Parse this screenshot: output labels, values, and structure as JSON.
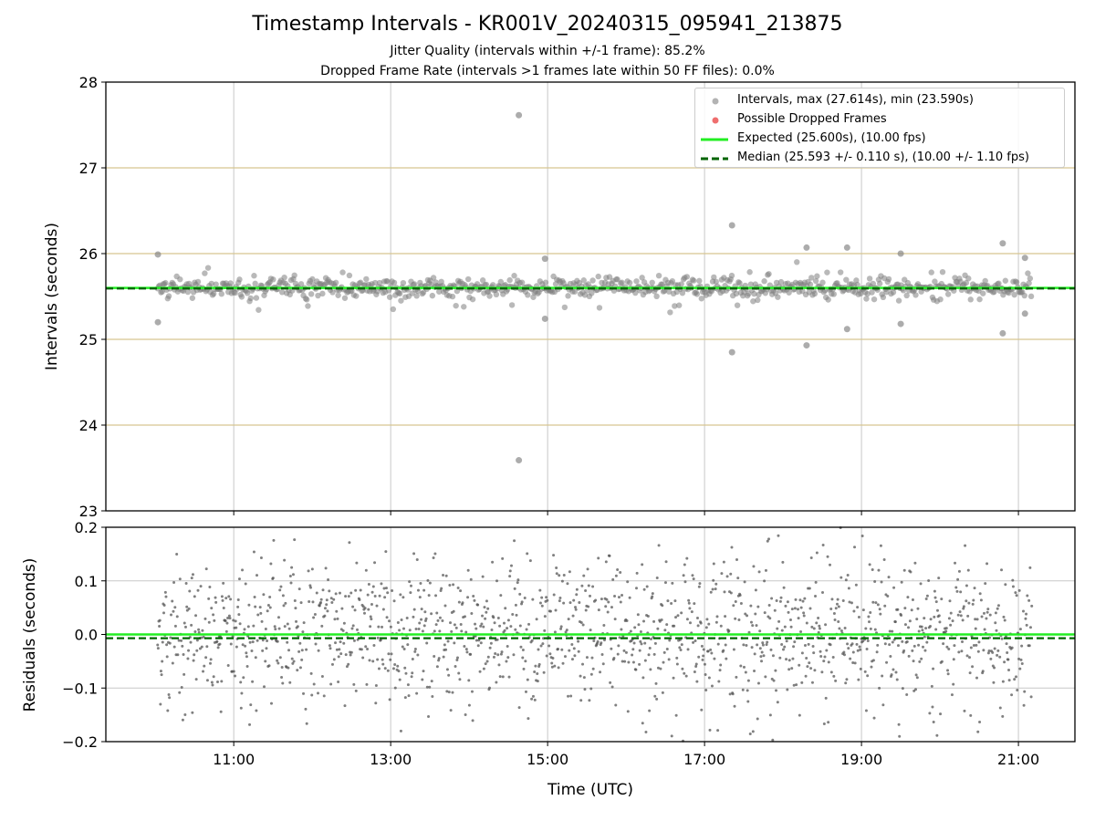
{
  "title": "Timestamp Intervals - KR001V_20240315_095941_213875",
  "subtitle_jitter": "Jitter Quality (intervals within +/-1 frame): 85.2%",
  "subtitle_dropped": "Dropped Frame Rate (intervals >1 frames late within 50 FF files): 0.0%",
  "legend": {
    "intervals": "Intervals, max (27.614s), min (23.590s)",
    "dropped": "Possible Dropped Frames",
    "expected": "Expected (25.600s), (10.00 fps)",
    "median": "Median (25.593 +/- 0.110 s), (10.00 +/- 1.10 fps)"
  },
  "colors": {
    "points": "#808080",
    "dropped": "#e83030",
    "expected": "#22ee22",
    "median": "#006400",
    "hgrid_top": "#d6c590",
    "grid": "#c8c8c8"
  },
  "chart_data": [
    {
      "type": "scatter",
      "panel": "top",
      "ylabel": "Intervals (seconds)",
      "xlabel": "",
      "ylim": [
        23,
        28
      ],
      "yticks": [
        "23",
        "24",
        "25",
        "26",
        "27",
        "28"
      ],
      "xticks": [
        "11:00",
        "13:00",
        "15:00",
        "17:00",
        "19:00",
        "21:00"
      ],
      "x_range_hours": [
        9.37,
        21.72
      ],
      "data_span_hours": [
        10.03,
        21.17
      ],
      "expected": 25.6,
      "median": 25.593,
      "noise_std": 0.11,
      "outliers": [
        {
          "t": "10:02",
          "y": 25.99
        },
        {
          "t": "10:02",
          "y": 25.2
        },
        {
          "t": "14:38",
          "y": 27.614
        },
        {
          "t": "14:38",
          "y": 23.59
        },
        {
          "t": "14:58",
          "y": 25.94
        },
        {
          "t": "14:58",
          "y": 25.24
        },
        {
          "t": "17:21",
          "y": 26.33
        },
        {
          "t": "17:21",
          "y": 24.85
        },
        {
          "t": "18:18",
          "y": 26.07
        },
        {
          "t": "18:18",
          "y": 24.93
        },
        {
          "t": "18:49",
          "y": 26.07
        },
        {
          "t": "18:49",
          "y": 25.12
        },
        {
          "t": "19:30",
          "y": 26.0
        },
        {
          "t": "19:30",
          "y": 25.18
        },
        {
          "t": "20:48",
          "y": 26.12
        },
        {
          "t": "20:48",
          "y": 25.07
        },
        {
          "t": "21:05",
          "y": 25.95
        },
        {
          "t": "21:05",
          "y": 25.3
        }
      ]
    },
    {
      "type": "scatter",
      "panel": "bottom",
      "ylabel": "Residuals (seconds)",
      "xlabel": "Time (UTC)",
      "ylim": [
        -0.2,
        0.2
      ],
      "yticks": [
        "−0.2",
        "−0.1",
        "0.0",
        "0.1",
        "0.2"
      ],
      "xticks": [
        "11:00",
        "13:00",
        "15:00",
        "17:00",
        "19:00",
        "21:00"
      ],
      "expected_residual": 0.0,
      "median_residual": -0.007
    }
  ]
}
